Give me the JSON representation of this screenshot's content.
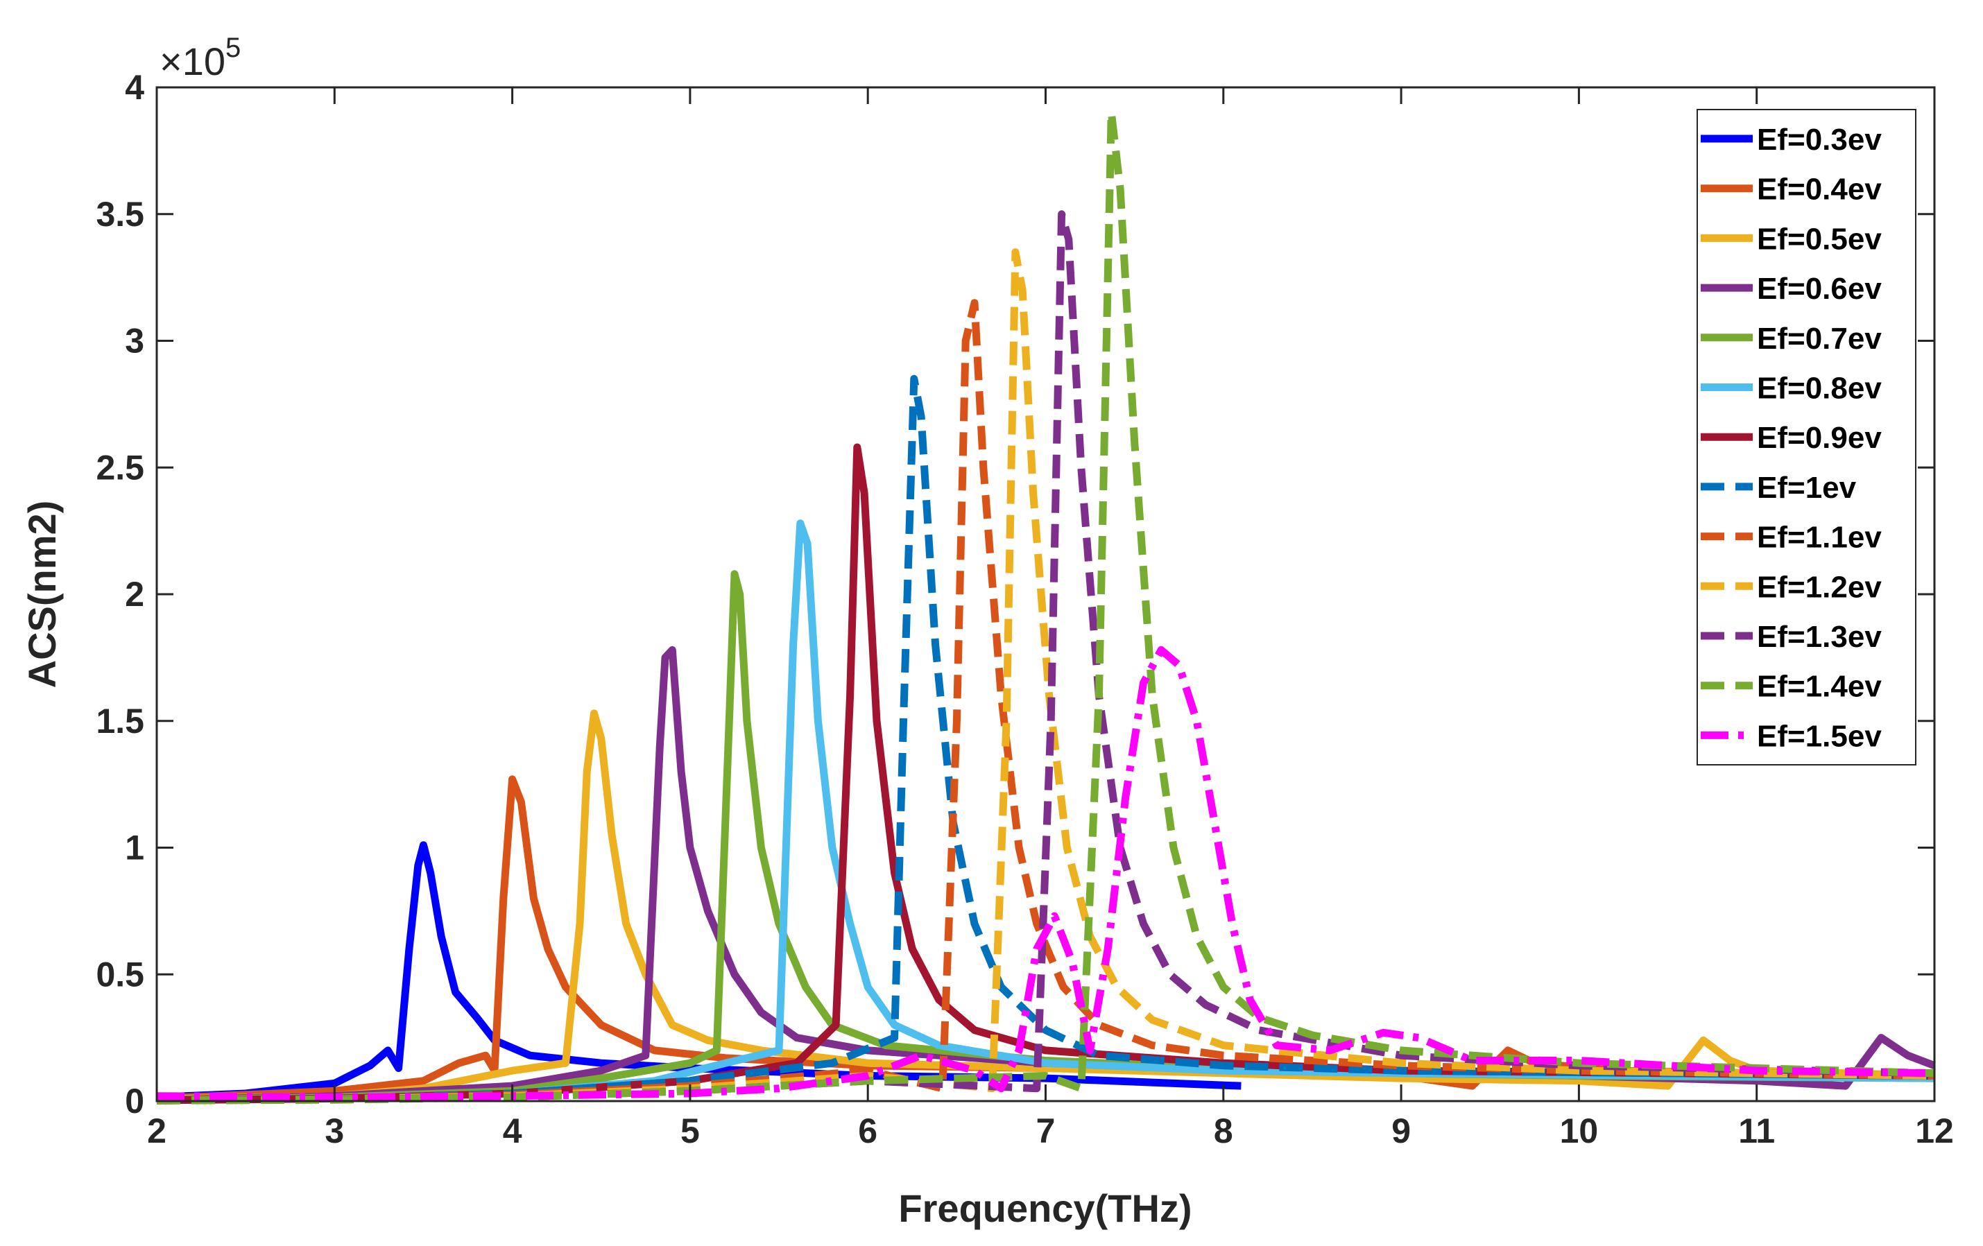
{
  "chart_data": {
    "type": "line",
    "title": "",
    "xlabel": "Frequency(THz)",
    "ylabel": "ACS(nm2)",
    "xlim": [
      2,
      12
    ],
    "ylim": [
      0,
      400000
    ],
    "y_exponent_label": {
      "base": "×10",
      "power": "5"
    },
    "x_ticks": [
      2,
      3,
      4,
      5,
      6,
      7,
      8,
      9,
      10,
      11,
      12
    ],
    "x_tick_labels": [
      "2",
      "3",
      "4",
      "5",
      "6",
      "7",
      "8",
      "9",
      "10",
      "11",
      "12"
    ],
    "y_ticks": [
      0,
      50000,
      100000,
      150000,
      200000,
      250000,
      300000,
      350000,
      400000
    ],
    "y_tick_labels": [
      "0",
      "0.5",
      "1",
      "1.5",
      "2",
      "2.5",
      "3",
      "3.5",
      "4"
    ],
    "grid": false,
    "legend_position": "top-right",
    "series": [
      {
        "name": "Ef=0.3ev",
        "color": "#0000ff",
        "dash": "solid",
        "points": [
          [
            2,
            1500
          ],
          [
            2.5,
            3000
          ],
          [
            3,
            7000
          ],
          [
            3.2,
            14000
          ],
          [
            3.3,
            20000
          ],
          [
            3.36,
            13000
          ],
          [
            3.42,
            60000
          ],
          [
            3.47,
            93000
          ],
          [
            3.5,
            101000
          ],
          [
            3.54,
            90000
          ],
          [
            3.6,
            65000
          ],
          [
            3.68,
            43000
          ],
          [
            3.8,
            33000
          ],
          [
            3.9,
            24000
          ],
          [
            4.1,
            18000
          ],
          [
            4.5,
            15000
          ],
          [
            5,
            13000
          ],
          [
            6,
            10000
          ],
          [
            7,
            9000
          ],
          [
            8.1,
            6000
          ]
        ]
      },
      {
        "name": "Ef=0.4ev",
        "color": "#d95319",
        "dash": "solid",
        "points": [
          [
            2,
            1000
          ],
          [
            2.5,
            2500
          ],
          [
            3,
            4000
          ],
          [
            3.5,
            8000
          ],
          [
            3.7,
            15000
          ],
          [
            3.85,
            18000
          ],
          [
            3.9,
            12000
          ],
          [
            3.95,
            80000
          ],
          [
            4,
            127000
          ],
          [
            4.05,
            118000
          ],
          [
            4.12,
            80000
          ],
          [
            4.2,
            60000
          ],
          [
            4.3,
            45000
          ],
          [
            4.5,
            30000
          ],
          [
            4.8,
            20000
          ],
          [
            5.2,
            17000
          ],
          [
            6,
            14000
          ],
          [
            7,
            13000
          ],
          [
            8,
            12000
          ],
          [
            9,
            10000
          ],
          [
            9.4,
            6000
          ],
          [
            9.6,
            20000
          ],
          [
            9.75,
            15000
          ],
          [
            10.2,
            12000
          ],
          [
            11,
            11000
          ],
          [
            12,
            10000
          ]
        ]
      },
      {
        "name": "Ef=0.5ev",
        "color": "#edb120",
        "dash": "solid",
        "points": [
          [
            2,
            800
          ],
          [
            3,
            2000
          ],
          [
            3.5,
            5000
          ],
          [
            4,
            12000
          ],
          [
            4.3,
            15000
          ],
          [
            4.38,
            70000
          ],
          [
            4.42,
            130000
          ],
          [
            4.46,
            153000
          ],
          [
            4.5,
            143000
          ],
          [
            4.56,
            105000
          ],
          [
            4.64,
            70000
          ],
          [
            4.75,
            50000
          ],
          [
            4.9,
            30000
          ],
          [
            5.1,
            24000
          ],
          [
            5.4,
            20000
          ],
          [
            6,
            15000
          ],
          [
            7,
            13000
          ],
          [
            8,
            11000
          ],
          [
            9,
            9000
          ],
          [
            10,
            8000
          ],
          [
            10.5,
            6000
          ],
          [
            10.7,
            24000
          ],
          [
            10.85,
            16000
          ],
          [
            11,
            12000
          ],
          [
            12,
            10000
          ]
        ]
      },
      {
        "name": "Ef=0.6ev",
        "color": "#7e2f8e",
        "dash": "solid",
        "points": [
          [
            2,
            500
          ],
          [
            3,
            2000
          ],
          [
            4,
            6000
          ],
          [
            4.5,
            12000
          ],
          [
            4.75,
            18000
          ],
          [
            4.83,
            140000
          ],
          [
            4.86,
            175000
          ],
          [
            4.9,
            178000
          ],
          [
            4.95,
            130000
          ],
          [
            5,
            100000
          ],
          [
            5.1,
            75000
          ],
          [
            5.25,
            50000
          ],
          [
            5.4,
            35000
          ],
          [
            5.6,
            25000
          ],
          [
            6,
            20000
          ],
          [
            7,
            15000
          ],
          [
            8,
            13000
          ],
          [
            9,
            12000
          ],
          [
            10,
            10000
          ],
          [
            11,
            8000
          ],
          [
            11.5,
            6000
          ],
          [
            11.7,
            25000
          ],
          [
            11.85,
            18000
          ],
          [
            12,
            14000
          ]
        ]
      },
      {
        "name": "Ef=0.7ev",
        "color": "#77ac30",
        "dash": "solid",
        "points": [
          [
            2,
            400
          ],
          [
            3,
            1500
          ],
          [
            4,
            4000
          ],
          [
            4.5,
            9000
          ],
          [
            5,
            15000
          ],
          [
            5.15,
            20000
          ],
          [
            5.22,
            150000
          ],
          [
            5.25,
            208000
          ],
          [
            5.28,
            200000
          ],
          [
            5.32,
            150000
          ],
          [
            5.4,
            100000
          ],
          [
            5.5,
            70000
          ],
          [
            5.65,
            45000
          ],
          [
            5.8,
            30000
          ],
          [
            6.1,
            22000
          ],
          [
            7,
            16000
          ],
          [
            8,
            13000
          ],
          [
            9,
            11000
          ],
          [
            10,
            10000
          ],
          [
            12,
            9000
          ]
        ]
      },
      {
        "name": "Ef=0.8ev",
        "color": "#4dbeee",
        "dash": "solid",
        "points": [
          [
            2,
            300
          ],
          [
            3,
            1000
          ],
          [
            4,
            3000
          ],
          [
            4.8,
            8000
          ],
          [
            5.2,
            15000
          ],
          [
            5.5,
            20000
          ],
          [
            5.58,
            180000
          ],
          [
            5.62,
            228000
          ],
          [
            5.66,
            220000
          ],
          [
            5.72,
            150000
          ],
          [
            5.8,
            100000
          ],
          [
            5.9,
            70000
          ],
          [
            6,
            45000
          ],
          [
            6.15,
            30000
          ],
          [
            6.4,
            22000
          ],
          [
            7,
            15000
          ],
          [
            8,
            12000
          ],
          [
            9,
            11000
          ],
          [
            12,
            9000
          ]
        ]
      },
      {
        "name": "Ef=0.9ev",
        "color": "#a2142f",
        "dash": "solid",
        "points": [
          [
            2,
            300
          ],
          [
            3,
            1000
          ],
          [
            4,
            3000
          ],
          [
            5,
            8000
          ],
          [
            5.6,
            15000
          ],
          [
            5.82,
            30000
          ],
          [
            5.9,
            160000
          ],
          [
            5.94,
            258000
          ],
          [
            5.98,
            240000
          ],
          [
            6.05,
            150000
          ],
          [
            6.15,
            90000
          ],
          [
            6.25,
            60000
          ],
          [
            6.4,
            40000
          ],
          [
            6.6,
            28000
          ],
          [
            7,
            20000
          ],
          [
            8,
            15000
          ],
          [
            9,
            12000
          ],
          [
            12,
            10000
          ]
        ]
      },
      {
        "name": "Ef=1ev",
        "color": "#0072bd",
        "dash": "dashed",
        "points": [
          [
            2,
            200
          ],
          [
            3,
            800
          ],
          [
            4,
            3000
          ],
          [
            5,
            8000
          ],
          [
            5.8,
            15000
          ],
          [
            6.15,
            25000
          ],
          [
            6.2,
            150000
          ],
          [
            6.26,
            285000
          ],
          [
            6.3,
            270000
          ],
          [
            6.38,
            180000
          ],
          [
            6.48,
            110000
          ],
          [
            6.6,
            70000
          ],
          [
            6.75,
            45000
          ],
          [
            7,
            28000
          ],
          [
            7.3,
            18000
          ],
          [
            8,
            14000
          ],
          [
            9,
            12000
          ],
          [
            12,
            10000
          ]
        ]
      },
      {
        "name": "Ef=1.1ev",
        "color": "#d95319",
        "dash": "dashed",
        "points": [
          [
            2,
            200
          ],
          [
            3,
            800
          ],
          [
            4,
            2500
          ],
          [
            5,
            6000
          ],
          [
            6,
            12000
          ],
          [
            6.42,
            5000
          ],
          [
            6.5,
            150000
          ],
          [
            6.55,
            300000
          ],
          [
            6.6,
            315000
          ],
          [
            6.65,
            250000
          ],
          [
            6.75,
            160000
          ],
          [
            6.85,
            100000
          ],
          [
            6.95,
            70000
          ],
          [
            7.1,
            45000
          ],
          [
            7.3,
            30000
          ],
          [
            7.6,
            22000
          ],
          [
            8,
            18000
          ],
          [
            9,
            14000
          ],
          [
            10,
            12000
          ],
          [
            12,
            10000
          ]
        ]
      },
      {
        "name": "Ef=1.2ev",
        "color": "#edb120",
        "dash": "dashed",
        "points": [
          [
            2,
            200
          ],
          [
            3,
            700
          ],
          [
            4,
            2000
          ],
          [
            5,
            5000
          ],
          [
            6,
            10000
          ],
          [
            6.7,
            5000
          ],
          [
            6.78,
            150000
          ],
          [
            6.83,
            335000
          ],
          [
            6.87,
            320000
          ],
          [
            6.93,
            240000
          ],
          [
            7.02,
            160000
          ],
          [
            7.12,
            100000
          ],
          [
            7.25,
            65000
          ],
          [
            7.4,
            45000
          ],
          [
            7.6,
            32000
          ],
          [
            8,
            22000
          ],
          [
            9,
            15000
          ],
          [
            10,
            12000
          ],
          [
            12,
            10000
          ]
        ]
      },
      {
        "name": "Ef=1.3ev",
        "color": "#7e2f8e",
        "dash": "dashed",
        "points": [
          [
            2,
            200
          ],
          [
            3,
            600
          ],
          [
            4,
            1500
          ],
          [
            5,
            4000
          ],
          [
            6,
            8000
          ],
          [
            6.95,
            5000
          ],
          [
            7.03,
            150000
          ],
          [
            7.09,
            350000
          ],
          [
            7.13,
            340000
          ],
          [
            7.2,
            250000
          ],
          [
            7.3,
            160000
          ],
          [
            7.42,
            100000
          ],
          [
            7.55,
            70000
          ],
          [
            7.7,
            50000
          ],
          [
            7.9,
            38000
          ],
          [
            8.2,
            28000
          ],
          [
            9,
            18000
          ],
          [
            10,
            14000
          ],
          [
            12,
            11000
          ]
        ]
      },
      {
        "name": "Ef=1.4ev",
        "color": "#77ac30",
        "dash": "dashed",
        "points": [
          [
            2,
            200
          ],
          [
            3,
            500
          ],
          [
            4,
            1500
          ],
          [
            5,
            4000
          ],
          [
            6,
            8000
          ],
          [
            7,
            10000
          ],
          [
            7.2,
            5000
          ],
          [
            7.3,
            160000
          ],
          [
            7.37,
            390000
          ],
          [
            7.42,
            360000
          ],
          [
            7.5,
            260000
          ],
          [
            7.6,
            160000
          ],
          [
            7.72,
            100000
          ],
          [
            7.85,
            65000
          ],
          [
            8,
            45000
          ],
          [
            8.2,
            33000
          ],
          [
            8.5,
            26000
          ],
          [
            9,
            20000
          ],
          [
            10,
            15000
          ],
          [
            12,
            11000
          ]
        ]
      },
      {
        "name": "Ef=1.5ev",
        "color": "#ff00ff",
        "dash": "dashdot",
        "points": [
          [
            2,
            2000
          ],
          [
            3,
            1500
          ],
          [
            4,
            2000
          ],
          [
            5,
            3000
          ],
          [
            5.5,
            5000
          ],
          [
            6,
            10000
          ],
          [
            6.3,
            18000
          ],
          [
            6.6,
            12000
          ],
          [
            6.75,
            5000
          ],
          [
            6.85,
            20000
          ],
          [
            6.95,
            60000
          ],
          [
            7.05,
            73000
          ],
          [
            7.15,
            55000
          ],
          [
            7.25,
            20000
          ],
          [
            7.35,
            60000
          ],
          [
            7.45,
            120000
          ],
          [
            7.55,
            165000
          ],
          [
            7.65,
            178000
          ],
          [
            7.75,
            172000
          ],
          [
            7.85,
            150000
          ],
          [
            7.95,
            110000
          ],
          [
            8.05,
            70000
          ],
          [
            8.15,
            40000
          ],
          [
            8.3,
            22000
          ],
          [
            8.6,
            20000
          ],
          [
            8.9,
            27000
          ],
          [
            9.1,
            25000
          ],
          [
            9.4,
            16000
          ],
          [
            10,
            16000
          ],
          [
            11,
            12000
          ],
          [
            12,
            11000
          ]
        ]
      }
    ]
  }
}
